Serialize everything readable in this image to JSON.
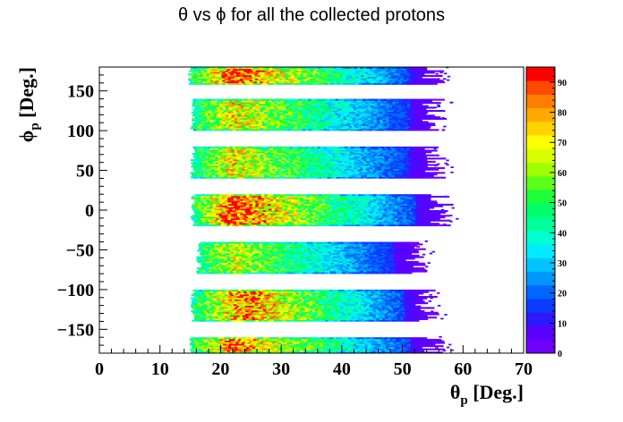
{
  "chart_data": {
    "type": "heatmap",
    "title": "θ vs ϕ for all the collected protons",
    "xlabel": {
      "main": "θ",
      "sub": "p",
      "rest": " [Deg.]"
    },
    "ylabel": {
      "main": "ϕ",
      "sub": "p",
      "rest": " [Deg.]"
    },
    "xlim": [
      0,
      70
    ],
    "ylim": [
      -180,
      180
    ],
    "x_ticks": [
      0,
      10,
      20,
      30,
      40,
      50,
      60,
      70
    ],
    "y_ticks": [
      -150,
      -100,
      -50,
      0,
      50,
      100,
      150
    ],
    "colorbar": {
      "min": 0,
      "max": 95,
      "ticks": [
        0,
        10,
        20,
        30,
        40,
        50,
        60,
        70,
        80,
        90
      ]
    },
    "bands": [
      {
        "phi_low": 158,
        "phi_high": 180,
        "theta_start": 14.5,
        "theta_end": 55,
        "peak": 95,
        "peak_theta": 22
      },
      {
        "phi_low": 100,
        "phi_high": 140,
        "theta_start": 15,
        "theta_end": 55,
        "peak": 75,
        "peak_theta": 22
      },
      {
        "phi_low": 40,
        "phi_high": 80,
        "theta_start": 15,
        "theta_end": 55,
        "peak": 75,
        "peak_theta": 22
      },
      {
        "phi_low": -20,
        "phi_high": 20,
        "theta_start": 15,
        "theta_end": 56,
        "peak": 95,
        "peak_theta": 22
      },
      {
        "phi_low": -80,
        "phi_high": -40,
        "theta_start": 16,
        "theta_end": 52,
        "peak": 70,
        "peak_theta": 22
      },
      {
        "phi_low": -140,
        "phi_high": -100,
        "theta_start": 15,
        "theta_end": 54,
        "peak": 88,
        "peak_theta": 24
      },
      {
        "phi_low": -180,
        "phi_high": -160,
        "theta_start": 14.5,
        "theta_end": 55,
        "peak": 90,
        "peak_theta": 22
      }
    ]
  }
}
